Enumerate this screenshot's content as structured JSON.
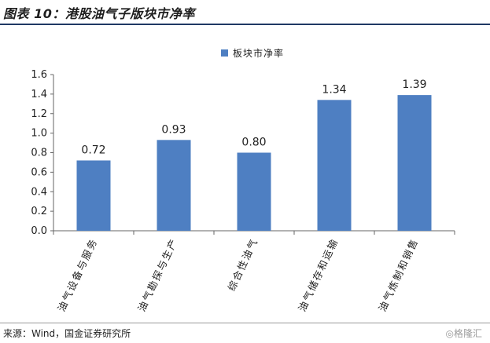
{
  "header": {
    "title": "图表 10：港股油气子版块市净率"
  },
  "chart_data": {
    "type": "bar",
    "title": "",
    "xlabel": "",
    "ylabel": "",
    "categories": [
      "油气设备与服务",
      "油气勘探与生产",
      "综合性油气",
      "油气储存和运输",
      "油气炼制和销售"
    ],
    "series": [
      {
        "name": "板块市净率",
        "values": [
          0.72,
          0.93,
          0.8,
          1.34,
          1.39
        ],
        "color": "#4e7fc2"
      }
    ],
    "data_labels": [
      "0.72",
      "0.93",
      "0.80",
      "1.34",
      "1.39"
    ],
    "ylim": [
      0,
      1.6
    ],
    "yticks": [
      "0.0",
      "0.2",
      "0.4",
      "0.6",
      "0.8",
      "1.0",
      "1.2",
      "1.4",
      "1.6"
    ],
    "grid": false,
    "legend_position": "top-center"
  },
  "footer": {
    "source": "来源：Wind，国金证券研究所",
    "watermark": "◎格隆汇"
  }
}
